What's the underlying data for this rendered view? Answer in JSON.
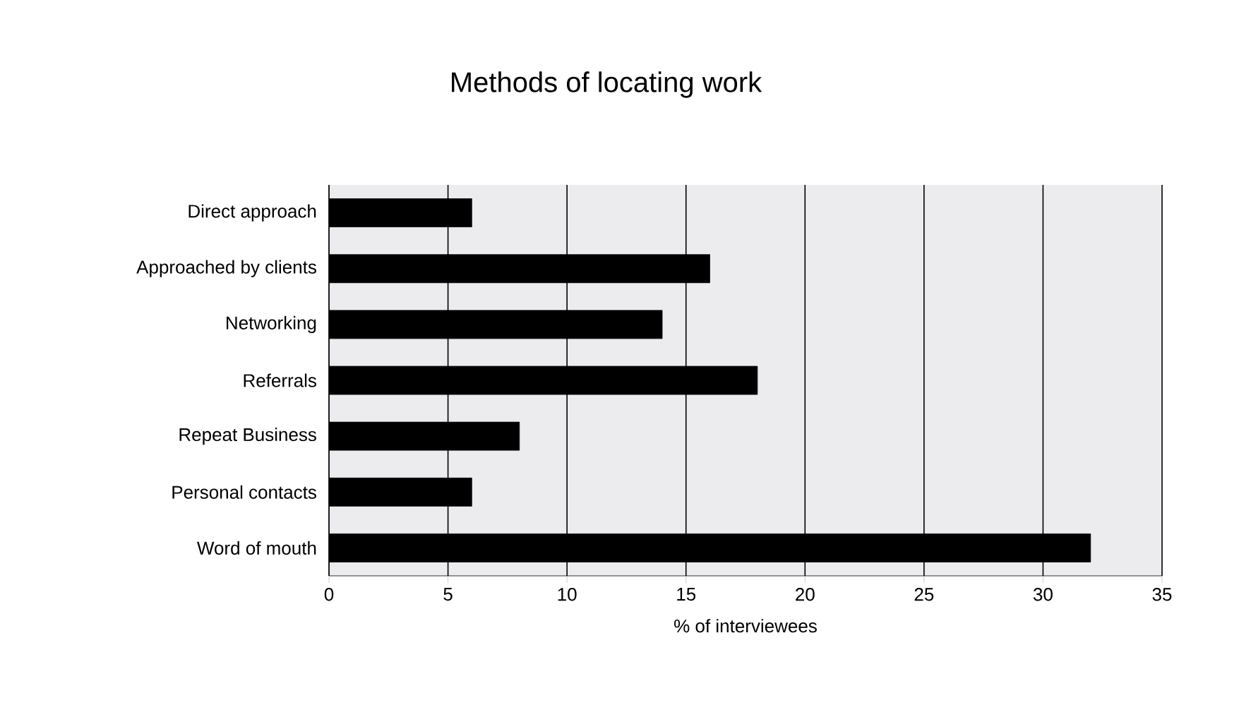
{
  "chart_data": {
    "type": "bar",
    "orientation": "horizontal",
    "title": "Methods of locating work",
    "xlabel": "% of interviewees",
    "categories": [
      "Direct approach",
      "Approached by clients",
      "Networking",
      "Referrals",
      "Repeat Business",
      "Personal contacts",
      "Word of mouth"
    ],
    "values": [
      6,
      16,
      14,
      18,
      8,
      6,
      32
    ],
    "color": "#000000",
    "xlim": [
      0,
      35
    ],
    "xticks": [
      0,
      5,
      10,
      15,
      20,
      25,
      30,
      35
    ],
    "grid": "x"
  }
}
